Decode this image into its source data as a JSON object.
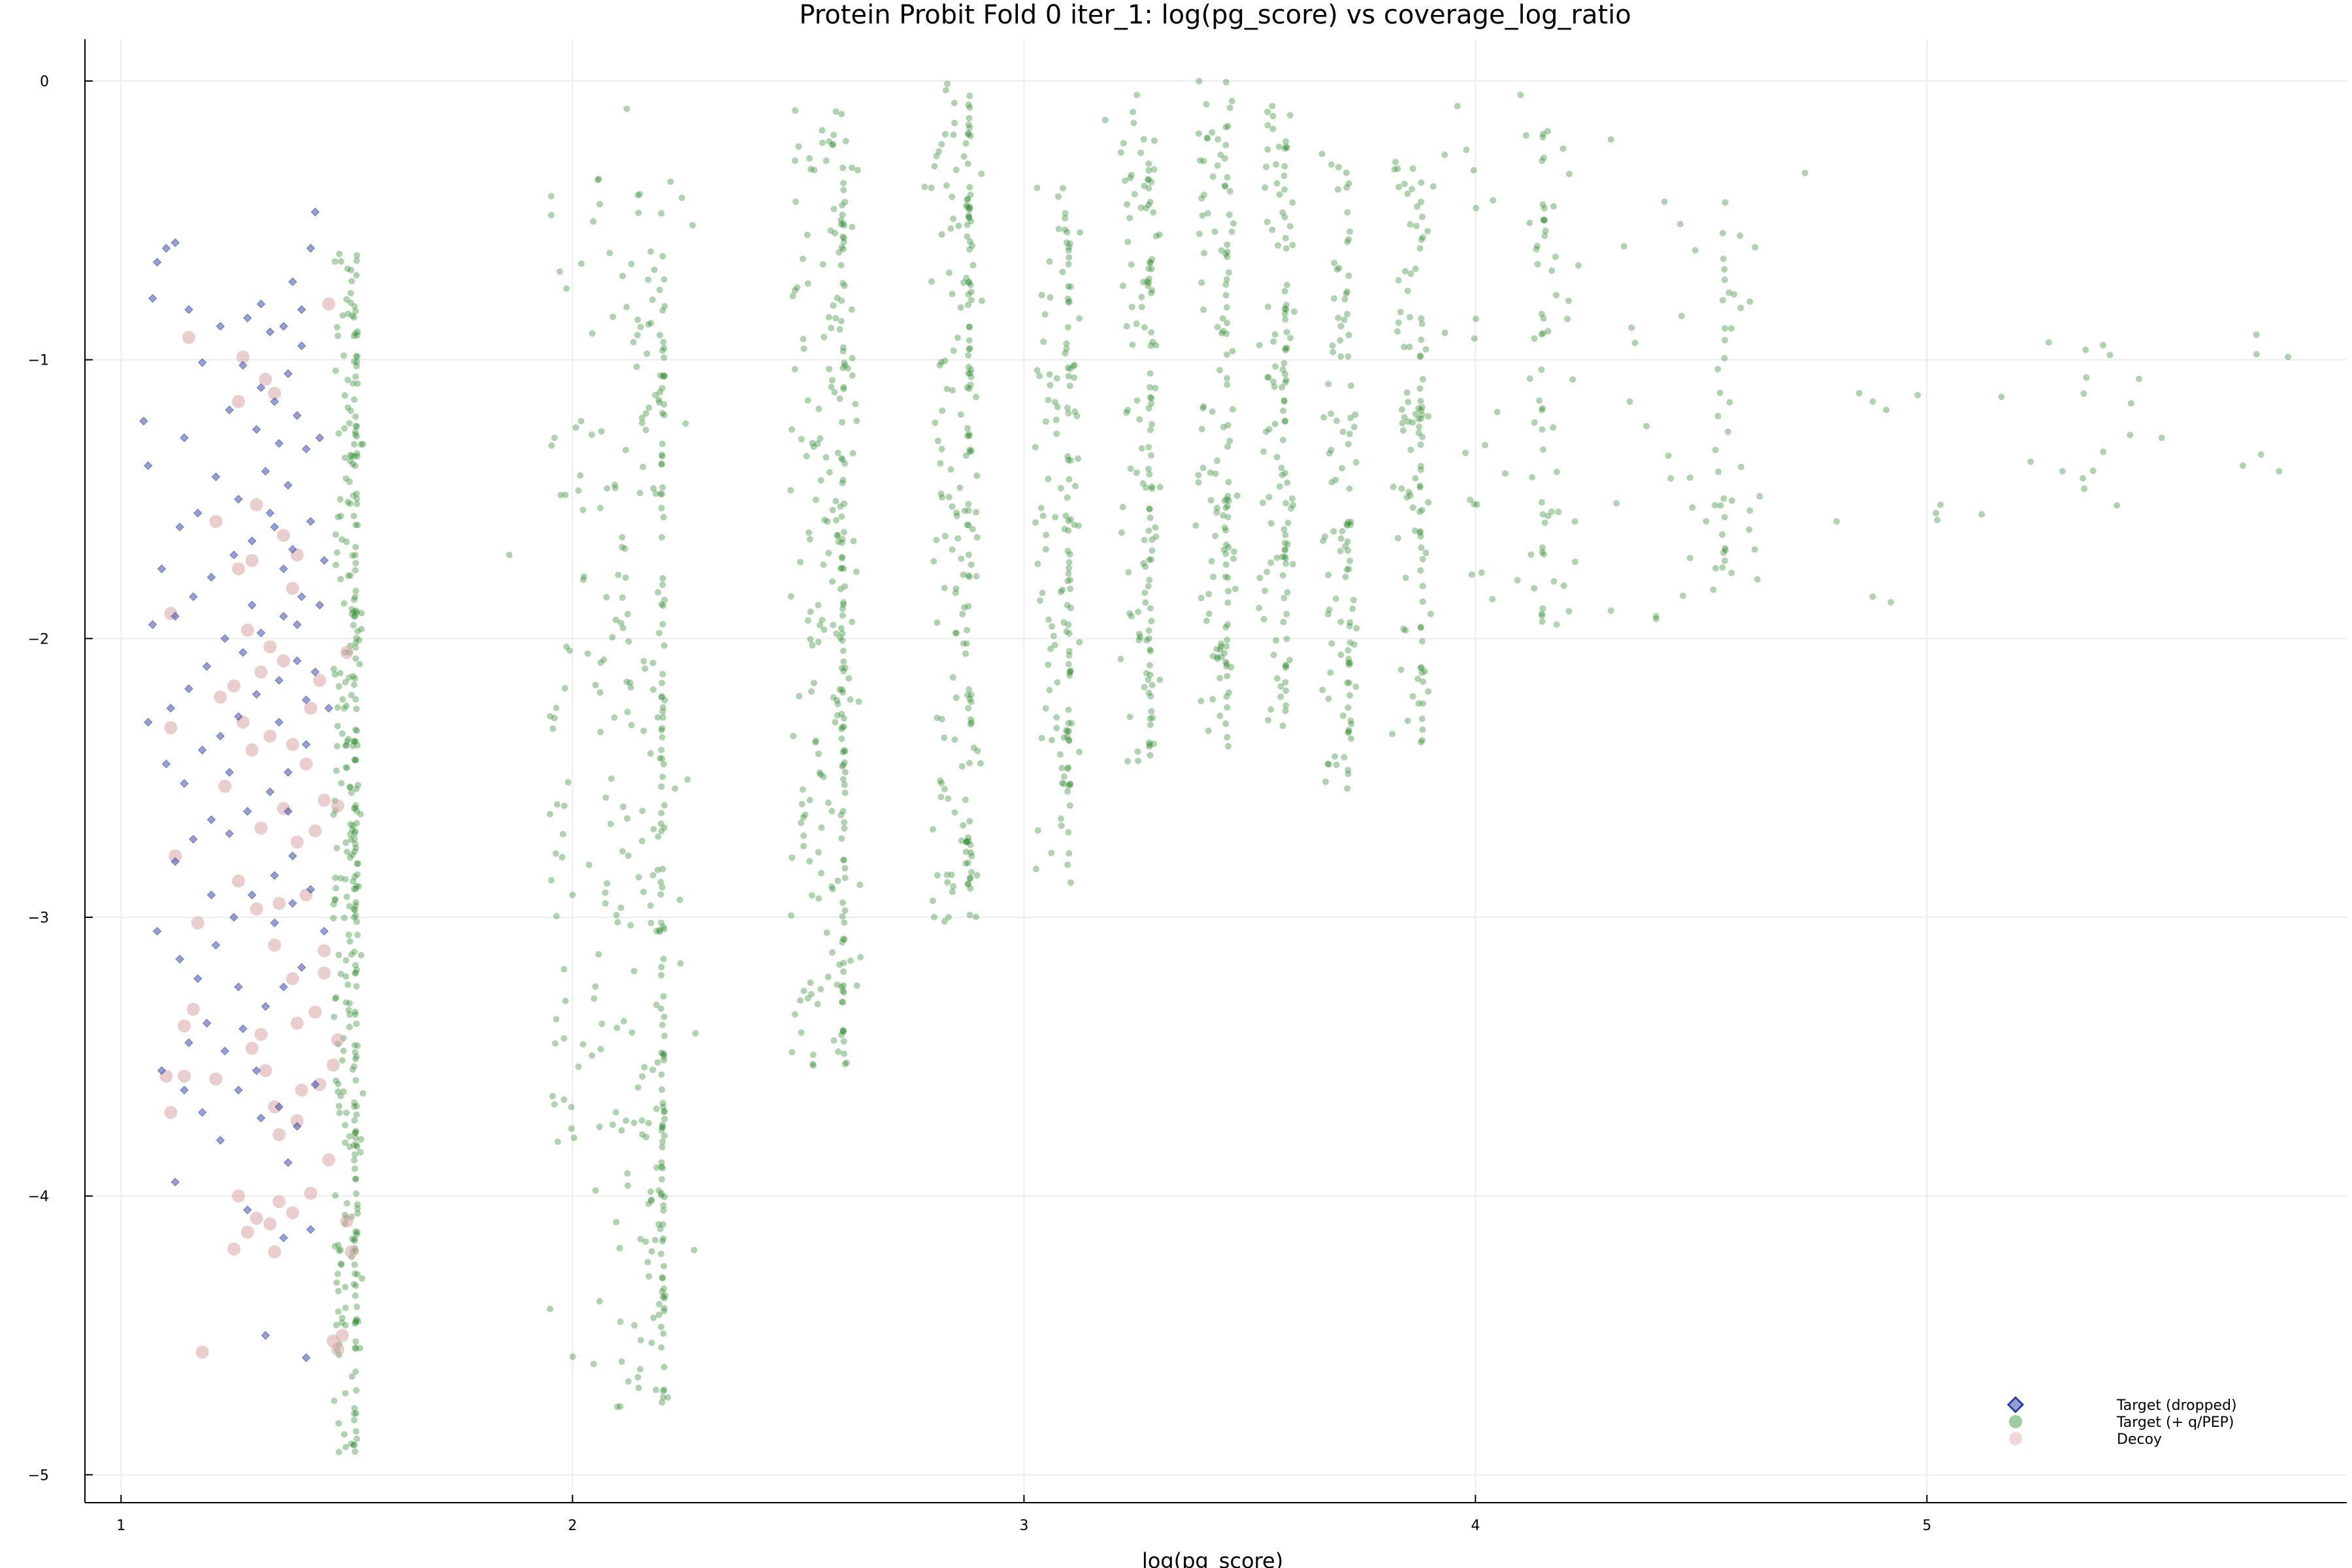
{
  "chart_data": {
    "type": "scatter",
    "title": "Protein Probit Fold 0 iter_1: log(pg_score) vs coverage_log_ratio",
    "xlabel": "log(pg_score)",
    "ylabel": "",
    "xlim": [
      0.92,
      5.93
    ],
    "ylim": [
      -5.1,
      0.15
    ],
    "xticks": [
      1,
      2,
      3,
      4,
      5
    ],
    "yticks": [
      0,
      -1,
      -2,
      -3,
      -4,
      -5
    ],
    "grid": true,
    "legend_position": "bottom-right",
    "colors": {
      "target_dropped": "#2b3fa8",
      "target_qpep": "#2e8b2e",
      "decoy": "#d9a6a6"
    },
    "series": [
      {
        "name": "Target (dropped)",
        "marker": "diamond",
        "points": [
          [
            1.08,
            -0.65
          ],
          [
            1.1,
            -0.6
          ],
          [
            1.12,
            -0.58
          ],
          [
            1.07,
            -0.78
          ],
          [
            1.15,
            -0.82
          ],
          [
            1.05,
            -1.22
          ],
          [
            1.06,
            -1.38
          ],
          [
            1.14,
            -1.28
          ],
          [
            1.18,
            -1.01
          ],
          [
            1.22,
            -0.88
          ],
          [
            1.28,
            -0.85
          ],
          [
            1.31,
            -0.8
          ],
          [
            1.36,
            -0.88
          ],
          [
            1.4,
            -0.82
          ],
          [
            1.43,
            -0.47
          ],
          [
            1.42,
            -0.6
          ],
          [
            1.38,
            -0.72
          ],
          [
            1.33,
            -0.9
          ],
          [
            1.27,
            -1.02
          ],
          [
            1.24,
            -1.18
          ],
          [
            1.3,
            -1.25
          ],
          [
            1.35,
            -1.3
          ],
          [
            1.39,
            -1.2
          ],
          [
            1.41,
            -1.32
          ],
          [
            1.44,
            -1.28
          ],
          [
            1.37,
            -1.45
          ],
          [
            1.32,
            -1.4
          ],
          [
            1.26,
            -1.5
          ],
          [
            1.21,
            -1.42
          ],
          [
            1.17,
            -1.55
          ],
          [
            1.13,
            -1.6
          ],
          [
            1.09,
            -1.75
          ],
          [
            1.07,
            -1.95
          ],
          [
            1.12,
            -1.92
          ],
          [
            1.16,
            -1.85
          ],
          [
            1.2,
            -1.78
          ],
          [
            1.25,
            -1.7
          ],
          [
            1.29,
            -1.65
          ],
          [
            1.34,
            -1.6
          ],
          [
            1.38,
            -1.68
          ],
          [
            1.42,
            -1.58
          ],
          [
            1.45,
            -1.72
          ],
          [
            1.4,
            -1.85
          ],
          [
            1.36,
            -1.92
          ],
          [
            1.31,
            -1.98
          ],
          [
            1.27,
            -2.05
          ],
          [
            1.23,
            -2.0
          ],
          [
            1.19,
            -2.1
          ],
          [
            1.15,
            -2.18
          ],
          [
            1.11,
            -2.25
          ],
          [
            1.06,
            -2.3
          ],
          [
            1.1,
            -2.45
          ],
          [
            1.14,
            -2.52
          ],
          [
            1.18,
            -2.4
          ],
          [
            1.22,
            -2.35
          ],
          [
            1.26,
            -2.28
          ],
          [
            1.3,
            -2.2
          ],
          [
            1.35,
            -2.15
          ],
          [
            1.39,
            -2.08
          ],
          [
            1.43,
            -2.12
          ],
          [
            1.46,
            -2.25
          ],
          [
            1.41,
            -2.38
          ],
          [
            1.37,
            -2.48
          ],
          [
            1.33,
            -2.55
          ],
          [
            1.28,
            -2.62
          ],
          [
            1.24,
            -2.7
          ],
          [
            1.2,
            -2.65
          ],
          [
            1.16,
            -2.72
          ],
          [
            1.12,
            -2.8
          ],
          [
            1.08,
            -3.05
          ],
          [
            1.13,
            -3.15
          ],
          [
            1.17,
            -3.22
          ],
          [
            1.21,
            -3.1
          ],
          [
            1.25,
            -3.0
          ],
          [
            1.29,
            -2.92
          ],
          [
            1.34,
            -2.85
          ],
          [
            1.38,
            -2.78
          ],
          [
            1.42,
            -2.9
          ],
          [
            1.45,
            -3.05
          ],
          [
            1.4,
            -3.18
          ],
          [
            1.36,
            -3.25
          ],
          [
            1.32,
            -3.32
          ],
          [
            1.27,
            -3.4
          ],
          [
            1.23,
            -3.48
          ],
          [
            1.19,
            -3.38
          ],
          [
            1.15,
            -3.45
          ],
          [
            1.09,
            -3.55
          ],
          [
            1.14,
            -3.62
          ],
          [
            1.18,
            -3.7
          ],
          [
            1.22,
            -3.8
          ],
          [
            1.26,
            -3.62
          ],
          [
            1.3,
            -3.55
          ],
          [
            1.35,
            -3.68
          ],
          [
            1.39,
            -3.75
          ],
          [
            1.43,
            -3.6
          ],
          [
            1.12,
            -3.95
          ],
          [
            1.32,
            -4.5
          ],
          [
            1.41,
            -4.58
          ],
          [
            1.28,
            -4.05
          ],
          [
            1.36,
            -4.15
          ],
          [
            1.31,
            -1.1
          ],
          [
            1.34,
            -1.15
          ],
          [
            1.37,
            -1.05
          ],
          [
            1.4,
            -0.95
          ],
          [
            1.33,
            -1.55
          ],
          [
            1.36,
            -1.75
          ],
          [
            1.39,
            -1.95
          ],
          [
            1.35,
            -2.3
          ],
          [
            1.37,
            -2.62
          ],
          [
            1.38,
            -2.95
          ],
          [
            1.34,
            -3.02
          ],
          [
            1.41,
            -2.22
          ],
          [
            1.44,
            -1.88
          ],
          [
            1.29,
            -1.88
          ],
          [
            1.24,
            -2.48
          ],
          [
            1.2,
            -2.92
          ],
          [
            1.26,
            -3.25
          ],
          [
            1.31,
            -3.72
          ],
          [
            1.37,
            -3.88
          ],
          [
            1.42,
            -4.12
          ]
        ]
      },
      {
        "name": "Target (+ q/PEP)",
        "marker": "circle",
        "columns": [
          {
            "x": 1.52,
            "jitter": 0.05,
            "ymin": -4.95,
            "ymax": -0.62,
            "n": 260,
            "spread": 0.85
          },
          {
            "x": 2.2,
            "jitter": 0.25,
            "ymin": -4.78,
            "ymax": -0.35,
            "n": 260,
            "spread": 0.9
          },
          {
            "x": 2.6,
            "jitter": 0.12,
            "ymin": -3.55,
            "ymax": -0.1,
            "n": 200,
            "spread": 0.8
          },
          {
            "x": 2.88,
            "jitter": 0.09,
            "ymin": -3.02,
            "ymax": -0.02,
            "n": 150,
            "spread": 0.8
          },
          {
            "x": 3.1,
            "jitter": 0.08,
            "ymin": -2.88,
            "ymax": -0.38,
            "n": 110,
            "spread": 0.8
          },
          {
            "x": 3.28,
            "jitter": 0.07,
            "ymin": -2.45,
            "ymax": -0.08,
            "n": 100,
            "spread": 0.8
          },
          {
            "x": 3.45,
            "jitter": 0.07,
            "ymin": -2.4,
            "ymax": 0.0,
            "n": 100,
            "spread": 0.8
          },
          {
            "x": 3.58,
            "jitter": 0.06,
            "ymin": -2.35,
            "ymax": -0.1,
            "n": 90,
            "spread": 0.8
          },
          {
            "x": 3.72,
            "jitter": 0.06,
            "ymin": -2.55,
            "ymax": -0.25,
            "n": 80,
            "spread": 0.8
          },
          {
            "x": 3.88,
            "jitter": 0.07,
            "ymin": -2.42,
            "ymax": -0.28,
            "n": 80,
            "spread": 0.8
          },
          {
            "x": 4.15,
            "jitter": 0.25,
            "ymin": -1.95,
            "ymax": -0.18,
            "n": 60,
            "spread": 0.7
          },
          {
            "x": 4.55,
            "jitter": 0.25,
            "ymin": -1.85,
            "ymax": -0.35,
            "n": 45,
            "spread": 0.6
          },
          {
            "x": 5.35,
            "jitter": 0.4,
            "ymin": -1.6,
            "ymax": -0.9,
            "n": 14,
            "spread": 0.4
          }
        ],
        "extra_points": [
          [
            1.86,
            -1.7
          ],
          [
            1.96,
            -1.28
          ],
          [
            1.95,
            -2.63
          ],
          [
            2.0,
            -2.92
          ],
          [
            2.12,
            -0.1
          ],
          [
            2.78,
            -0.38
          ],
          [
            2.83,
            -0.01
          ],
          [
            3.18,
            -0.14
          ],
          [
            3.25,
            -0.05
          ],
          [
            3.55,
            -0.09
          ],
          [
            3.96,
            -0.09
          ],
          [
            4.1,
            -0.05
          ],
          [
            4.3,
            -0.21
          ],
          [
            4.73,
            -0.33
          ],
          [
            4.16,
            -0.18
          ],
          [
            5.02,
            -1.55
          ],
          [
            5.03,
            -1.52
          ],
          [
            5.3,
            -1.4
          ],
          [
            5.45,
            -1.27
          ],
          [
            5.52,
            -1.28
          ],
          [
            5.7,
            -1.38
          ],
          [
            5.73,
            -0.98
          ],
          [
            5.74,
            -1.34
          ],
          [
            5.78,
            -1.4
          ],
          [
            5.8,
            -0.99
          ],
          [
            5.73,
            -0.91
          ],
          [
            4.8,
            -1.58
          ],
          [
            4.88,
            -1.85
          ],
          [
            4.92,
            -1.87
          ],
          [
            4.85,
            -1.12
          ],
          [
            4.88,
            -1.15
          ],
          [
            4.91,
            -1.18
          ],
          [
            4.4,
            -1.93
          ],
          [
            4.4,
            -1.92
          ],
          [
            4.3,
            -1.9
          ],
          [
            4.22,
            -1.58
          ],
          [
            4.13,
            -1.82
          ],
          [
            4.18,
            -1.95
          ]
        ]
      },
      {
        "name": "Decoy",
        "marker": "circle-large",
        "points": [
          [
            1.15,
            -0.92
          ],
          [
            1.27,
            -0.99
          ],
          [
            1.32,
            -1.07
          ],
          [
            1.34,
            -1.12
          ],
          [
            1.26,
            -1.15
          ],
          [
            1.46,
            -0.8
          ],
          [
            1.21,
            -1.58
          ],
          [
            1.3,
            -1.52
          ],
          [
            1.36,
            -1.63
          ],
          [
            1.39,
            -1.7
          ],
          [
            1.29,
            -1.72
          ],
          [
            1.26,
            -1.75
          ],
          [
            1.11,
            -1.91
          ],
          [
            1.38,
            -1.82
          ],
          [
            1.28,
            -1.97
          ],
          [
            1.33,
            -2.03
          ],
          [
            1.36,
            -2.08
          ],
          [
            1.31,
            -2.12
          ],
          [
            1.25,
            -2.17
          ],
          [
            1.22,
            -2.21
          ],
          [
            1.42,
            -2.25
          ],
          [
            1.27,
            -2.3
          ],
          [
            1.11,
            -2.32
          ],
          [
            1.33,
            -2.35
          ],
          [
            1.29,
            -2.4
          ],
          [
            1.41,
            -2.45
          ],
          [
            1.23,
            -2.53
          ],
          [
            1.45,
            -2.58
          ],
          [
            1.36,
            -2.61
          ],
          [
            1.31,
            -2.68
          ],
          [
            1.43,
            -2.69
          ],
          [
            1.39,
            -2.73
          ],
          [
            1.12,
            -2.78
          ],
          [
            1.26,
            -2.87
          ],
          [
            1.41,
            -2.92
          ],
          [
            1.3,
            -2.97
          ],
          [
            1.17,
            -3.02
          ],
          [
            1.34,
            -3.1
          ],
          [
            1.45,
            -3.2
          ],
          [
            1.38,
            -3.22
          ],
          [
            1.16,
            -3.33
          ],
          [
            1.14,
            -3.39
          ],
          [
            1.43,
            -3.34
          ],
          [
            1.39,
            -3.38
          ],
          [
            1.31,
            -3.42
          ],
          [
            1.48,
            -3.44
          ],
          [
            1.29,
            -3.47
          ],
          [
            1.32,
            -3.55
          ],
          [
            1.47,
            -3.53
          ],
          [
            1.1,
            -3.57
          ],
          [
            1.14,
            -3.57
          ],
          [
            1.21,
            -3.58
          ],
          [
            1.44,
            -3.6
          ],
          [
            1.4,
            -3.62
          ],
          [
            1.34,
            -3.68
          ],
          [
            1.11,
            -3.7
          ],
          [
            1.35,
            -3.78
          ],
          [
            1.39,
            -3.73
          ],
          [
            1.46,
            -3.87
          ],
          [
            1.42,
            -3.99
          ],
          [
            1.26,
            -4.0
          ],
          [
            1.35,
            -4.02
          ],
          [
            1.3,
            -4.08
          ],
          [
            1.33,
            -4.1
          ],
          [
            1.28,
            -4.13
          ],
          [
            1.38,
            -4.06
          ],
          [
            1.5,
            -4.09
          ],
          [
            1.51,
            -4.2
          ],
          [
            1.34,
            -4.2
          ],
          [
            1.25,
            -4.19
          ],
          [
            1.18,
            -4.56
          ],
          [
            1.47,
            -4.52
          ],
          [
            1.48,
            -4.55
          ],
          [
            1.49,
            -4.5
          ],
          [
            1.38,
            -2.38
          ],
          [
            1.44,
            -2.15
          ],
          [
            1.35,
            -2.95
          ],
          [
            1.45,
            -3.12
          ],
          [
            1.48,
            -2.6
          ],
          [
            1.5,
            -2.05
          ]
        ]
      }
    ]
  }
}
